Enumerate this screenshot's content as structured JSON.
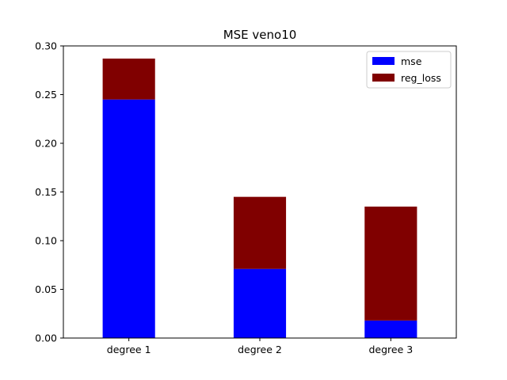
{
  "chart_data": {
    "type": "bar",
    "stacked": true,
    "title": "MSE veno10",
    "xlabel": "",
    "ylabel": "",
    "categories": [
      "degree 1",
      "degree 2",
      "degree 3"
    ],
    "series": [
      {
        "name": "mse",
        "values": [
          0.245,
          0.071,
          0.018
        ],
        "color": "#0000ff"
      },
      {
        "name": "reg_loss",
        "values": [
          0.042,
          0.074,
          0.117
        ],
        "color": "#800000"
      }
    ],
    "ylim": [
      0,
      0.3
    ],
    "yticks": [
      "0.00",
      "0.05",
      "0.10",
      "0.15",
      "0.20",
      "0.25",
      "0.30"
    ],
    "grid": false,
    "legend_position": "top-right"
  }
}
